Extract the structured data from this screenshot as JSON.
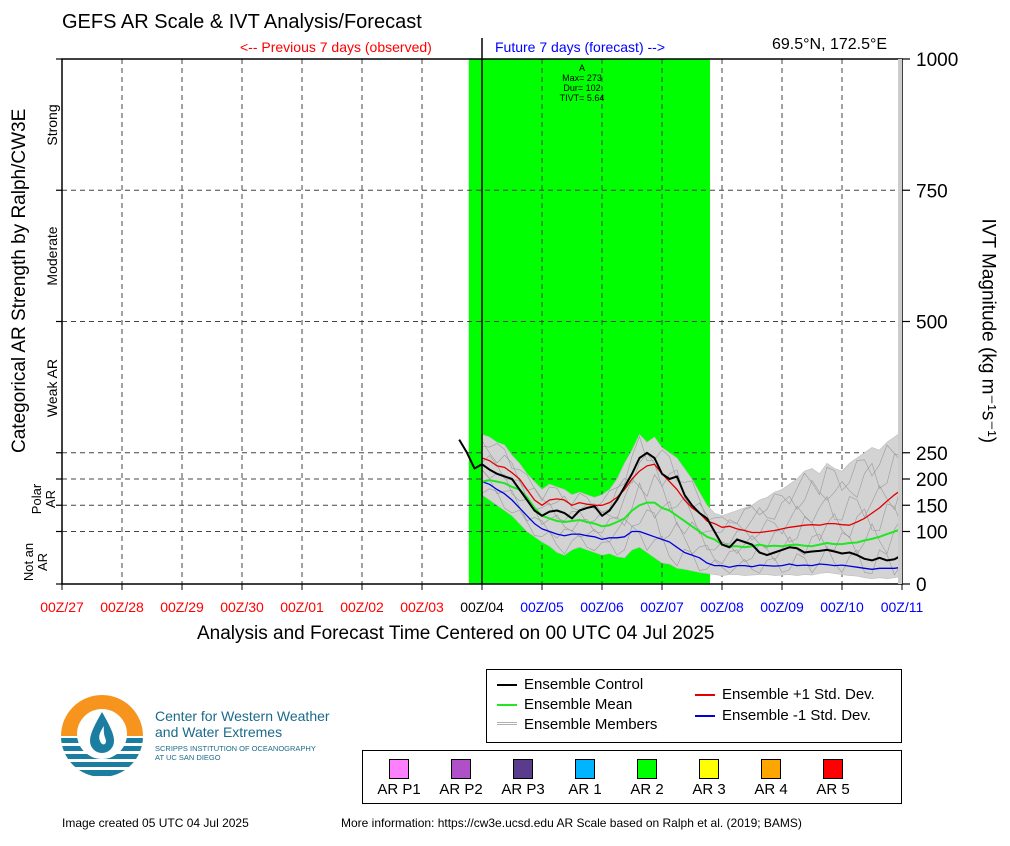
{
  "title": "GEFS AR Scale & IVT Analysis/Forecast",
  "location": "69.5°N, 172.5°E",
  "past_label": "<-- Previous 7 days (observed)",
  "future_label": "Future 7 days (forecast) -->",
  "left_axis_title": "Categorical AR Strength by Ralph/CW3E",
  "right_axis_title": "IVT Magnitude (kg m⁻¹s⁻¹)",
  "x_axis_title": "Analysis and Forecast Time Centered on 00 UTC 04 Jul 2025",
  "left_categories": [
    {
      "label": "Not an AR",
      "lines": [
        "Not an",
        "AR"
      ]
    },
    {
      "label": "Polar AR",
      "lines": [
        "Polar",
        "AR"
      ]
    },
    {
      "label": "Weak AR",
      "lines": [
        "Weak AR"
      ]
    },
    {
      "label": "Moderate",
      "lines": [
        "Moderate"
      ]
    },
    {
      "label": "Strong",
      "lines": [
        "Strong"
      ]
    }
  ],
  "event_annotation": {
    "lines": [
      "A",
      "Max= 273",
      "Dur= 102",
      "TIVT= 5.64"
    ]
  },
  "legend": {
    "control": "Ensemble Control",
    "mean": "Ensemble Mean",
    "members": "Ensemble Members",
    "plus_sd": "Ensemble +1 Std. Dev.",
    "minus_sd": "Ensemble -1 Std. Dev."
  },
  "ar_categories": [
    {
      "label": "AR P1",
      "color": "#ff80ff"
    },
    {
      "label": "AR P2",
      "color": "#b050c8"
    },
    {
      "label": "AR P3",
      "color": "#5a3c8c"
    },
    {
      "label": "AR 1",
      "color": "#00b4ff"
    },
    {
      "label": "AR 2",
      "color": "#00ff00"
    },
    {
      "label": "AR 3",
      "color": "#ffff00"
    },
    {
      "label": "AR 4",
      "color": "#ffa500"
    },
    {
      "label": "AR 5",
      "color": "#ff0000"
    }
  ],
  "logo": {
    "line1": "Center for Western Weather",
    "line2": "and Water Extremes",
    "line3": "SCRIPPS INSTITUTION OF OCEANOGRAPHY",
    "line4": "AT UC SAN DIEGO"
  },
  "footer": {
    "created": "Image created 05 UTC 04 Jul 2025",
    "info": "More information: https://cw3e.ucsd.edu AR Scale based on Ralph et al. (2019; BAMS)"
  },
  "colors": {
    "observed": "#ff0000",
    "forecast": "#0000ff",
    "ar_band": "#00ff00",
    "spread": "#d3d3d3",
    "control": "#000000",
    "mean": "#22e622",
    "plus_sd": "#e00000",
    "minus_sd": "#0000dd"
  },
  "chart_data": {
    "type": "line",
    "x_ticks": [
      {
        "label": "00Z/27",
        "day": -7,
        "group": "observed"
      },
      {
        "label": "00Z/28",
        "day": -6,
        "group": "observed"
      },
      {
        "label": "00Z/29",
        "day": -5,
        "group": "observed"
      },
      {
        "label": "00Z/30",
        "day": -4,
        "group": "observed"
      },
      {
        "label": "00Z/01",
        "day": -3,
        "group": "observed"
      },
      {
        "label": "00Z/02",
        "day": -2,
        "group": "observed"
      },
      {
        "label": "00Z/03",
        "day": -1,
        "group": "observed"
      },
      {
        "label": "00Z/04",
        "day": 0,
        "group": "now"
      },
      {
        "label": "00Z/05",
        "day": 1,
        "group": "forecast"
      },
      {
        "label": "00Z/06",
        "day": 2,
        "group": "forecast"
      },
      {
        "label": "00Z/07",
        "day": 3,
        "group": "forecast"
      },
      {
        "label": "00Z/08",
        "day": 4,
        "group": "forecast"
      },
      {
        "label": "00Z/09",
        "day": 5,
        "group": "forecast"
      },
      {
        "label": "00Z/10",
        "day": 6,
        "group": "forecast"
      },
      {
        "label": "00Z/11",
        "day": 7,
        "group": "forecast"
      }
    ],
    "xlim": [
      -7,
      7
    ],
    "y_ticks": [
      0,
      100,
      150,
      200,
      250,
      500,
      750,
      1000
    ],
    "ylim": [
      0,
      1000
    ],
    "ar_band": {
      "start": -0.22,
      "end": 3.8,
      "category": "AR 2"
    },
    "x": [
      -0.38,
      -0.25,
      -0.125,
      0,
      0.125,
      0.25,
      0.375,
      0.5,
      0.625,
      0.75,
      0.875,
      1,
      1.125,
      1.25,
      1.375,
      1.5,
      1.625,
      1.75,
      1.875,
      2,
      2.125,
      2.25,
      2.375,
      2.5,
      2.625,
      2.75,
      2.875,
      3,
      3.125,
      3.25,
      3.375,
      3.5,
      3.625,
      3.75,
      3.875,
      4,
      4.125,
      4.25,
      4.375,
      4.5,
      4.625,
      4.75,
      4.875,
      5,
      5.125,
      5.25,
      5.375,
      5.5,
      5.625,
      5.75,
      5.875,
      6,
      6.125,
      6.25,
      6.375,
      6.5,
      6.625,
      6.75,
      6.875,
      7
    ],
    "series": [
      {
        "name": "Ensemble Control",
        "key": "control",
        "values": [
          275,
          250,
          220,
          228,
          218,
          210,
          205,
          200,
          180,
          160,
          140,
          130,
          138,
          140,
          135,
          125,
          140,
          145,
          148,
          130,
          140,
          160,
          185,
          210,
          240,
          250,
          240,
          210,
          200,
          205,
          170,
          150,
          135,
          125,
          100,
          75,
          70,
          85,
          80,
          75,
          60,
          55,
          60,
          65,
          70,
          68,
          60,
          62,
          63,
          65,
          62,
          58,
          60,
          55,
          48,
          45,
          50,
          45,
          47,
          55
        ]
      },
      {
        "name": "Ensemble Mean",
        "key": "mean",
        "values": [
          null,
          null,
          null,
          195,
          198,
          195,
          192,
          185,
          180,
          165,
          145,
          130,
          125,
          120,
          118,
          120,
          122,
          118,
          115,
          110,
          112,
          118,
          125,
          140,
          150,
          155,
          155,
          145,
          140,
          130,
          120,
          110,
          100,
          90,
          85,
          75,
          72,
          72,
          70,
          72,
          75,
          72,
          73,
          72,
          74,
          75,
          73,
          72,
          75,
          78,
          76,
          76,
          78,
          79,
          83,
          86,
          90,
          95,
          100,
          105
        ]
      },
      {
        "name": "Ensemble +1 Std. Dev.",
        "key": "plus_sd",
        "values": [
          null,
          null,
          null,
          240,
          235,
          225,
          222,
          212,
          200,
          180,
          160,
          150,
          160,
          162,
          160,
          150,
          155,
          152,
          150,
          150,
          155,
          165,
          180,
          200,
          215,
          225,
          228,
          210,
          195,
          180,
          160,
          145,
          135,
          120,
          115,
          108,
          110,
          105,
          102,
          98,
          98,
          100,
          102,
          105,
          108,
          110,
          112,
          113,
          112,
          115,
          115,
          113,
          112,
          118,
          125,
          135,
          145,
          158,
          170,
          180
        ]
      },
      {
        "name": "Ensemble -1 Std. Dev.",
        "key": "minus_sd",
        "values": [
          null,
          null,
          null,
          195,
          190,
          180,
          172,
          160,
          145,
          130,
          115,
          105,
          100,
          95,
          92,
          95,
          95,
          92,
          90,
          85,
          88,
          88,
          90,
          100,
          100,
          95,
          90,
          85,
          80,
          70,
          60,
          55,
          50,
          40,
          35,
          35,
          32,
          35,
          35,
          33,
          36,
          35,
          34,
          35,
          38,
          35,
          36,
          35,
          38,
          37,
          35,
          36,
          34,
          32,
          30,
          28,
          30,
          30,
          30,
          32
        ]
      }
    ],
    "spread_band": {
      "upper": [
        null,
        null,
        null,
        285,
        280,
        270,
        265,
        245,
        230,
        210,
        195,
        180,
        190,
        185,
        180,
        170,
        175,
        170,
        165,
        170,
        180,
        200,
        230,
        255,
        285,
        270,
        280,
        260,
        250,
        240,
        220,
        200,
        175,
        150,
        135,
        130,
        135,
        140,
        145,
        150,
        160,
        165,
        175,
        180,
        190,
        200,
        215,
        220,
        210,
        230,
        220,
        215,
        230,
        240,
        250,
        260,
        255,
        270,
        280,
        290
      ],
      "lower": [
        null,
        null,
        null,
        170,
        160,
        150,
        140,
        130,
        115,
        100,
        90,
        80,
        72,
        60,
        55,
        65,
        70,
        65,
        60,
        55,
        58,
        52,
        50,
        65,
        70,
        60,
        50,
        40,
        38,
        30,
        28,
        25,
        22,
        20,
        18,
        16,
        18,
        18,
        16,
        17,
        18,
        18,
        16,
        17,
        18,
        16,
        18,
        17,
        20,
        22,
        20,
        18,
        16,
        15,
        12,
        10,
        12,
        10,
        12,
        15
      ]
    }
  }
}
